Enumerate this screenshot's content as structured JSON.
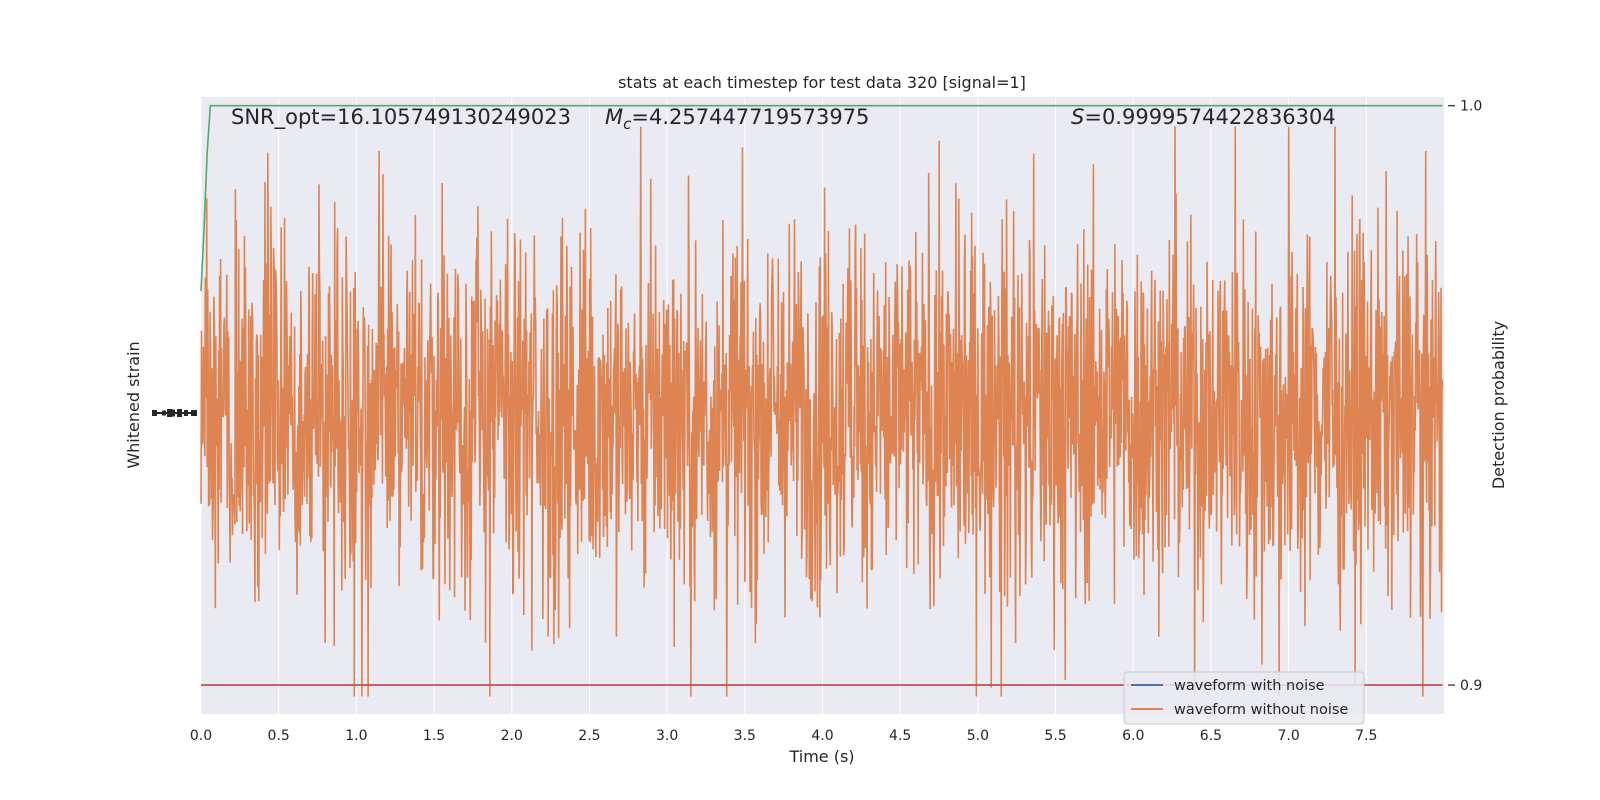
{
  "chart_data": {
    "type": "line",
    "title": "stats at each timestep for test data 320 [signal=1]",
    "xlabel": "Time (s)",
    "ylabel_left": "Whitened strain",
    "ylabel_right": "Detection probability",
    "xlim": [
      0.0,
      8.0
    ],
    "x_ticks": [
      "0.0",
      "0.5",
      "1.0",
      "1.5",
      "2.0",
      "2.5",
      "3.0",
      "3.5",
      "4.0",
      "4.5",
      "5.0",
      "5.5",
      "6.0",
      "6.5",
      "7.0",
      "7.5"
    ],
    "x_tick_values": [
      0.0,
      0.5,
      1.0,
      1.5,
      2.0,
      2.5,
      3.0,
      3.5,
      4.0,
      4.5,
      5.0,
      5.5,
      6.0,
      6.5,
      7.0,
      7.5
    ],
    "right_ylim": [
      0.895,
      1.0015
    ],
    "right_y_ticks": [
      "0.9",
      "1.0"
    ],
    "right_y_tick_values": [
      0.9,
      1.0
    ],
    "annotations": {
      "snr": "SNR_opt=16.105749130249023",
      "mc_symbol": "M",
      "mc_sub": "c",
      "mc_value": "=4.257447719573975",
      "s_symbol": "S",
      "s_value": "=0.9999574422836304"
    },
    "legend": {
      "placement": "lower-right",
      "entries": [
        "waveform with noise",
        "waveform without noise"
      ]
    },
    "grid": true,
    "colors": {
      "background": "#eaeaf2",
      "grid": "#ffffff",
      "strain": "#dd8452",
      "probability": "#55a868",
      "threshold": "#c44e52",
      "waveform_with_noise": "#4c72b0",
      "text": "#262626"
    },
    "series": [
      {
        "name": "waveform without noise",
        "axis": "left",
        "description_kind": "noise",
        "x_range": [
          0.0,
          7.99
        ],
        "amplitude_band": [
          -0.9,
          0.9
        ],
        "peak_range": [
          -1.0,
          1.0
        ]
      },
      {
        "axis": "right",
        "x": [
          0.0,
          0.02,
          0.04,
          0.06,
          0.5,
          1.0,
          2.0,
          3.0,
          4.0,
          5.0,
          6.0,
          7.0,
          7.99
        ],
        "y": [
          0.968,
          0.979,
          0.992,
          1.0,
          1.0,
          1.0,
          1.0,
          1.0,
          1.0,
          1.0,
          1.0,
          1.0,
          1.0
        ]
      },
      {
        "axis": "right",
        "x": [
          0.0,
          7.99
        ],
        "y": [
          0.9,
          0.9
        ]
      }
    ]
  }
}
